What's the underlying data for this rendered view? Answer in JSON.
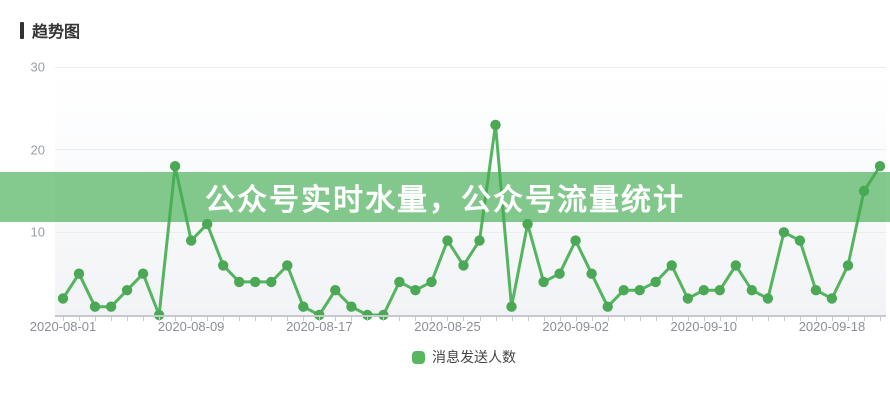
{
  "header": {
    "title": "趋势图"
  },
  "overlay": {
    "text": "公众号实时水量，公众号流量统计",
    "text_color": "#ffffff",
    "band_color": "#42ac50"
  },
  "legend": {
    "label": "消息发送人数",
    "marker_color": "#57b761"
  },
  "colors": {
    "line": "#55b45f",
    "dot": "#4ba956",
    "grid": "#ededed",
    "axis": "#c6cacf",
    "tick_label": "#9aa0a6"
  },
  "chart_data": {
    "type": "line",
    "title": "趋势图",
    "xlabel": "",
    "ylabel": "",
    "ylim": [
      0,
      30
    ],
    "y_ticks": [
      10,
      20,
      30
    ],
    "grid": true,
    "legend_position": "bottom",
    "x": [
      "2020-08-01",
      "2020-08-02",
      "2020-08-03",
      "2020-08-04",
      "2020-08-05",
      "2020-08-06",
      "2020-08-07",
      "2020-08-08",
      "2020-08-09",
      "2020-08-10",
      "2020-08-11",
      "2020-08-12",
      "2020-08-13",
      "2020-08-14",
      "2020-08-15",
      "2020-08-16",
      "2020-08-17",
      "2020-08-18",
      "2020-08-19",
      "2020-08-20",
      "2020-08-21",
      "2020-08-22",
      "2020-08-23",
      "2020-08-24",
      "2020-08-25",
      "2020-08-26",
      "2020-08-27",
      "2020-08-28",
      "2020-08-29",
      "2020-08-30",
      "2020-08-31",
      "2020-09-01",
      "2020-09-02",
      "2020-09-03",
      "2020-09-04",
      "2020-09-05",
      "2020-09-06",
      "2020-09-07",
      "2020-09-08",
      "2020-09-09",
      "2020-09-10",
      "2020-09-11",
      "2020-09-12",
      "2020-09-13",
      "2020-09-14",
      "2020-09-15",
      "2020-09-16",
      "2020-09-17",
      "2020-09-18",
      "2020-09-19",
      "2020-09-20",
      "2020-09-21"
    ],
    "x_tick_labels": [
      "2020-08-01",
      "2020-08-09",
      "2020-08-17",
      "2020-08-25",
      "2020-09-02",
      "2020-09-10",
      "2020-09-18"
    ],
    "series": [
      {
        "name": "消息发送人数",
        "color": "#55b45f",
        "values": [
          2,
          5,
          1,
          1,
          3,
          5,
          0,
          18,
          9,
          11,
          6,
          4,
          4,
          4,
          6,
          1,
          0,
          3,
          1,
          0,
          0,
          4,
          3,
          4,
          9,
          6,
          9,
          23,
          1,
          11,
          4,
          5,
          9,
          5,
          1,
          3,
          3,
          4,
          6,
          2,
          3,
          3,
          6,
          3,
          2,
          10,
          9,
          3,
          2,
          6,
          15,
          18
        ]
      }
    ]
  }
}
